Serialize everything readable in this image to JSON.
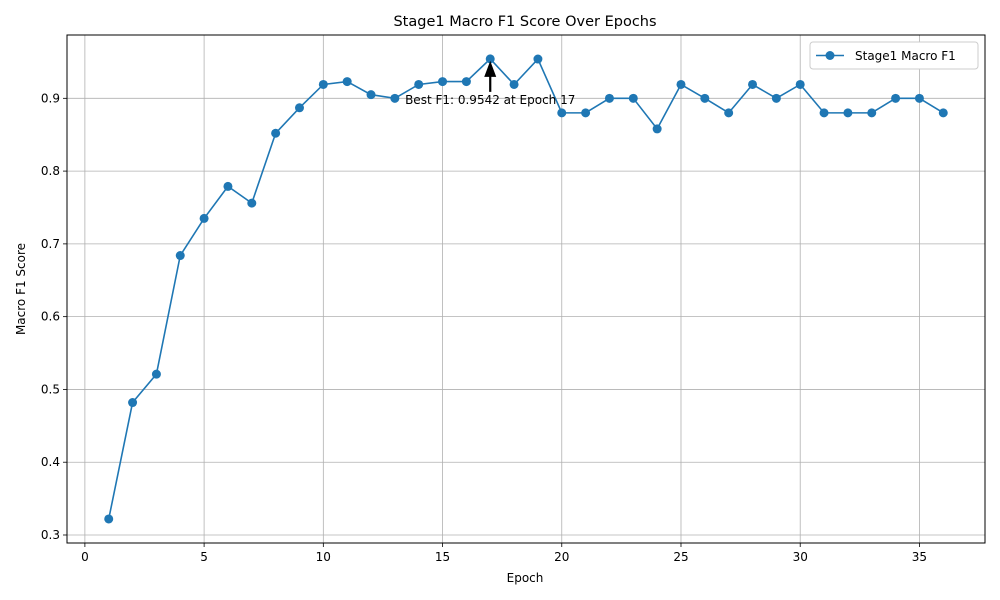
{
  "chart_data": {
    "type": "line",
    "title": "Stage1 Macro F1 Score Over Epochs",
    "xlabel": "Epoch",
    "ylabel": "Macro F1 Score",
    "xlim": [
      -0.75,
      37.75
    ],
    "ylim": [
      0.289,
      0.987
    ],
    "xticks": [
      0,
      5,
      10,
      15,
      20,
      25,
      30,
      35
    ],
    "yticks": [
      0.3,
      0.4,
      0.5,
      0.6,
      0.7,
      0.8,
      0.9
    ],
    "grid": true,
    "legend_position": "top-right",
    "series": [
      {
        "name": "Stage1 Macro F1",
        "color": "#1f77b4",
        "marker": "circle",
        "x": [
          1,
          2,
          3,
          4,
          5,
          6,
          7,
          8,
          9,
          10,
          11,
          12,
          13,
          14,
          15,
          16,
          17,
          18,
          19,
          20,
          21,
          22,
          23,
          24,
          25,
          26,
          27,
          28,
          29,
          30,
          31,
          32,
          33,
          34,
          35,
          36
        ],
        "y": [
          0.322,
          0.482,
          0.521,
          0.684,
          0.735,
          0.779,
          0.756,
          0.852,
          0.887,
          0.919,
          0.923,
          0.905,
          0.9,
          0.919,
          0.923,
          0.923,
          0.9542,
          0.919,
          0.954,
          0.88,
          0.88,
          0.9,
          0.9,
          0.858,
          0.919,
          0.9,
          0.88,
          0.919,
          0.9,
          0.919,
          0.88,
          0.88,
          0.88,
          0.9,
          0.9,
          0.88
        ]
      }
    ],
    "annotation": {
      "text": "Best F1: 0.9542 at Epoch 17",
      "x": 17,
      "y": 0.9542,
      "arrow": true
    }
  }
}
